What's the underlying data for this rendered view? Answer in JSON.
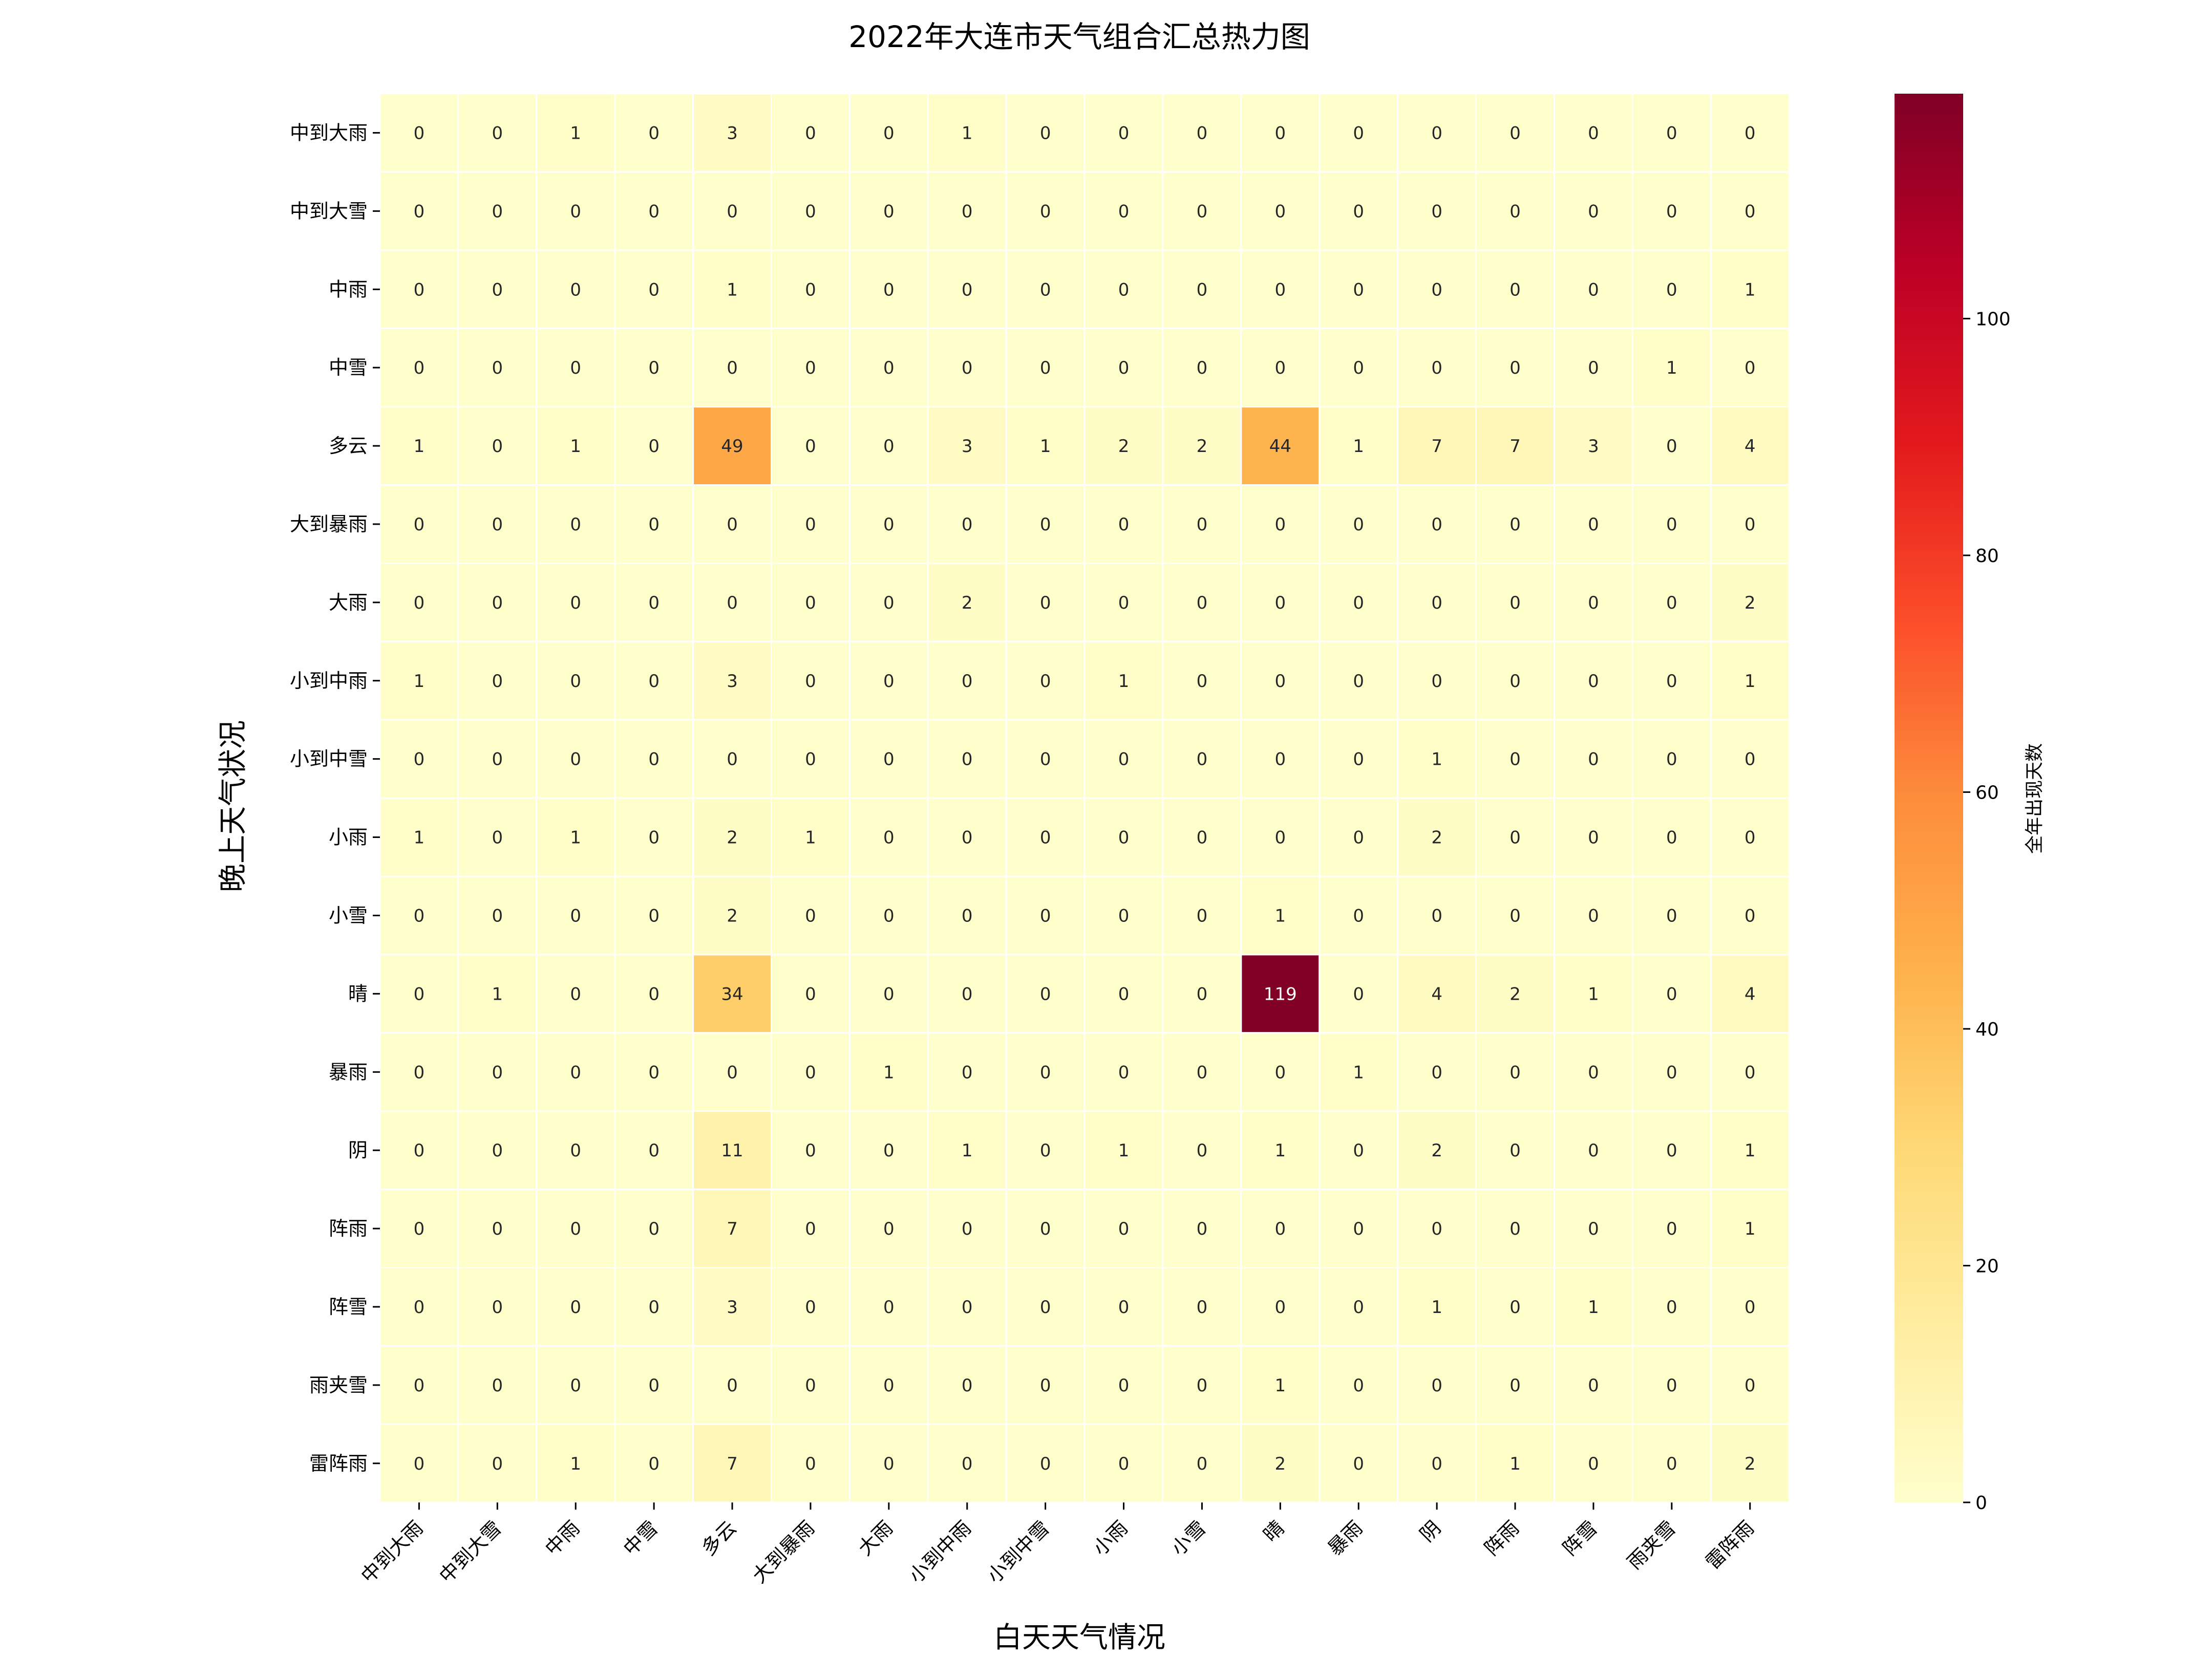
{
  "chart_data": {
    "type": "heatmap",
    "title": "2022年大连市天气组合汇总热力图",
    "xlabel": "白天天气情况",
    "ylabel": "晚上天气状况",
    "x_categories": [
      "中到大雨",
      "中到大雪",
      "中雨",
      "中雪",
      "多云",
      "大到暴雨",
      "大雨",
      "小到中雨",
      "小到中雪",
      "小雨",
      "小雪",
      "晴",
      "暴雨",
      "阴",
      "阵雨",
      "阵雪",
      "雨夹雪",
      "雷阵雨"
    ],
    "y_categories": [
      "中到大雨",
      "中到大雪",
      "中雨",
      "中雪",
      "多云",
      "大到暴雨",
      "大雨",
      "小到中雨",
      "小到中雪",
      "小雨",
      "小雪",
      "晴",
      "暴雨",
      "阴",
      "阵雨",
      "阵雪",
      "雨夹雪",
      "雷阵雨"
    ],
    "values": [
      [
        0,
        0,
        1,
        0,
        3,
        0,
        0,
        1,
        0,
        0,
        0,
        0,
        0,
        0,
        0,
        0,
        0,
        0
      ],
      [
        0,
        0,
        0,
        0,
        0,
        0,
        0,
        0,
        0,
        0,
        0,
        0,
        0,
        0,
        0,
        0,
        0,
        0
      ],
      [
        0,
        0,
        0,
        0,
        1,
        0,
        0,
        0,
        0,
        0,
        0,
        0,
        0,
        0,
        0,
        0,
        0,
        1
      ],
      [
        0,
        0,
        0,
        0,
        0,
        0,
        0,
        0,
        0,
        0,
        0,
        0,
        0,
        0,
        0,
        0,
        1,
        0
      ],
      [
        1,
        0,
        1,
        0,
        49,
        0,
        0,
        3,
        1,
        2,
        2,
        44,
        1,
        7,
        7,
        3,
        0,
        4
      ],
      [
        0,
        0,
        0,
        0,
        0,
        0,
        0,
        0,
        0,
        0,
        0,
        0,
        0,
        0,
        0,
        0,
        0,
        0
      ],
      [
        0,
        0,
        0,
        0,
        0,
        0,
        0,
        2,
        0,
        0,
        0,
        0,
        0,
        0,
        0,
        0,
        0,
        2
      ],
      [
        1,
        0,
        0,
        0,
        3,
        0,
        0,
        0,
        0,
        1,
        0,
        0,
        0,
        0,
        0,
        0,
        0,
        1
      ],
      [
        0,
        0,
        0,
        0,
        0,
        0,
        0,
        0,
        0,
        0,
        0,
        0,
        0,
        1,
        0,
        0,
        0,
        0
      ],
      [
        1,
        0,
        1,
        0,
        2,
        1,
        0,
        0,
        0,
        0,
        0,
        0,
        0,
        2,
        0,
        0,
        0,
        0
      ],
      [
        0,
        0,
        0,
        0,
        2,
        0,
        0,
        0,
        0,
        0,
        0,
        1,
        0,
        0,
        0,
        0,
        0,
        0
      ],
      [
        0,
        1,
        0,
        0,
        34,
        0,
        0,
        0,
        0,
        0,
        0,
        119,
        0,
        4,
        2,
        1,
        0,
        4
      ],
      [
        0,
        0,
        0,
        0,
        0,
        0,
        1,
        0,
        0,
        0,
        0,
        0,
        1,
        0,
        0,
        0,
        0,
        0
      ],
      [
        0,
        0,
        0,
        0,
        11,
        0,
        0,
        1,
        0,
        1,
        0,
        1,
        0,
        2,
        0,
        0,
        0,
        1
      ],
      [
        0,
        0,
        0,
        0,
        7,
        0,
        0,
        0,
        0,
        0,
        0,
        0,
        0,
        0,
        0,
        0,
        0,
        1
      ],
      [
        0,
        0,
        0,
        0,
        3,
        0,
        0,
        0,
        0,
        0,
        0,
        0,
        0,
        1,
        0,
        1,
        0,
        0
      ],
      [
        0,
        0,
        0,
        0,
        0,
        0,
        0,
        0,
        0,
        0,
        0,
        1,
        0,
        0,
        0,
        0,
        0,
        0
      ],
      [
        0,
        0,
        1,
        0,
        7,
        0,
        0,
        0,
        0,
        0,
        0,
        2,
        0,
        0,
        1,
        0,
        0,
        2
      ]
    ],
    "colormap": "YlOrRd",
    "vmin": 0,
    "vmax": 119,
    "colorbar_label": "全年出现天数",
    "colorbar_ticks": [
      0,
      20,
      40,
      60,
      80,
      100
    ],
    "grid": false,
    "legend": "colorbar-right"
  }
}
